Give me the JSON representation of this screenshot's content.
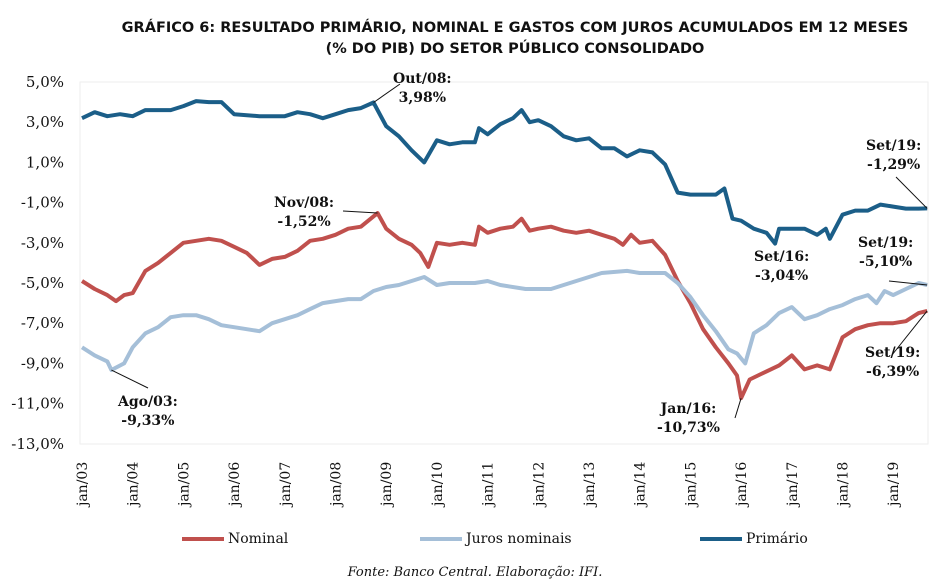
{
  "chart_data": {
    "type": "line",
    "title": "GRÁFICO 6: RESULTADO PRIMÁRIO, NOMINAL E GASTOS COM JUROS ACUMULADOS EM 12 MESES",
    "subtitle": "(% DO PIB) DO SETOR PÚBLICO CONSOLIDADO",
    "xlabel": "",
    "ylabel": "",
    "ylim": [
      -13,
      5
    ],
    "yticks": [
      "5,0%",
      "3,0%",
      "1,0%",
      "-1,0%",
      "-3,0%",
      "-5,0%",
      "-7,0%",
      "-9,0%",
      "-11,0%",
      "-13,0%"
    ],
    "ytick_values": [
      5,
      3,
      1,
      -1,
      -3,
      -5,
      -7,
      -9,
      -11,
      -13
    ],
    "xlim": [
      2003.0,
      2019.67
    ],
    "xticks": [
      "jan/03",
      "jan/04",
      "jan/05",
      "jan/06",
      "jan/07",
      "jan/08",
      "jan/09",
      "jan/10",
      "jan/11",
      "jan/12",
      "jan/13",
      "jan/14",
      "jan/15",
      "jan/16",
      "jan/17",
      "jan/18",
      "jan/19"
    ],
    "xtick_values": [
      2003,
      2004,
      2005,
      2006,
      2007,
      2008,
      2009,
      2010,
      2011,
      2012,
      2013,
      2014,
      2015,
      2016,
      2017,
      2018,
      2019
    ],
    "grid": false,
    "legend_position": "bottom",
    "series": [
      {
        "name": "Nominal",
        "color": "#c0504d",
        "points": [
          [
            2003.0,
            -4.9
          ],
          [
            2003.25,
            -5.3
          ],
          [
            2003.5,
            -5.6
          ],
          [
            2003.67,
            -5.9
          ],
          [
            2003.83,
            -5.6
          ],
          [
            2004.0,
            -5.5
          ],
          [
            2004.25,
            -4.4
          ],
          [
            2004.5,
            -4.0
          ],
          [
            2004.75,
            -3.5
          ],
          [
            2005.0,
            -3.0
          ],
          [
            2005.25,
            -2.9
          ],
          [
            2005.5,
            -2.8
          ],
          [
            2005.75,
            -2.9
          ],
          [
            2006.0,
            -3.2
          ],
          [
            2006.25,
            -3.5
          ],
          [
            2006.5,
            -4.1
          ],
          [
            2006.75,
            -3.8
          ],
          [
            2007.0,
            -3.7
          ],
          [
            2007.25,
            -3.4
          ],
          [
            2007.5,
            -2.9
          ],
          [
            2007.75,
            -2.8
          ],
          [
            2008.0,
            -2.6
          ],
          [
            2008.25,
            -2.3
          ],
          [
            2008.5,
            -2.2
          ],
          [
            2008.83,
            -1.52
          ],
          [
            2009.0,
            -2.3
          ],
          [
            2009.25,
            -2.8
          ],
          [
            2009.5,
            -3.1
          ],
          [
            2009.67,
            -3.5
          ],
          [
            2009.83,
            -4.2
          ],
          [
            2010.0,
            -3.0
          ],
          [
            2010.25,
            -3.1
          ],
          [
            2010.5,
            -3.0
          ],
          [
            2010.75,
            -3.1
          ],
          [
            2010.83,
            -2.2
          ],
          [
            2011.0,
            -2.5
          ],
          [
            2011.25,
            -2.3
          ],
          [
            2011.5,
            -2.2
          ],
          [
            2011.67,
            -1.8
          ],
          [
            2011.83,
            -2.4
          ],
          [
            2012.0,
            -2.3
          ],
          [
            2012.25,
            -2.2
          ],
          [
            2012.5,
            -2.4
          ],
          [
            2012.75,
            -2.5
          ],
          [
            2013.0,
            -2.4
          ],
          [
            2013.25,
            -2.6
          ],
          [
            2013.5,
            -2.8
          ],
          [
            2013.67,
            -3.1
          ],
          [
            2013.83,
            -2.6
          ],
          [
            2014.0,
            -3.0
          ],
          [
            2014.25,
            -2.9
          ],
          [
            2014.5,
            -3.6
          ],
          [
            2014.75,
            -4.9
          ],
          [
            2015.0,
            -6.0
          ],
          [
            2015.25,
            -7.3
          ],
          [
            2015.5,
            -8.2
          ],
          [
            2015.75,
            -9.0
          ],
          [
            2015.92,
            -9.6
          ],
          [
            2016.0,
            -10.73
          ],
          [
            2016.17,
            -9.8
          ],
          [
            2016.5,
            -9.4
          ],
          [
            2016.75,
            -9.1
          ],
          [
            2017.0,
            -8.6
          ],
          [
            2017.25,
            -9.3
          ],
          [
            2017.5,
            -9.1
          ],
          [
            2017.75,
            -9.3
          ],
          [
            2018.0,
            -7.7
          ],
          [
            2018.25,
            -7.3
          ],
          [
            2018.5,
            -7.1
          ],
          [
            2018.75,
            -7.0
          ],
          [
            2019.0,
            -7.0
          ],
          [
            2019.25,
            -6.9
          ],
          [
            2019.5,
            -6.5
          ],
          [
            2019.67,
            -6.39
          ]
        ]
      },
      {
        "name": "Juros nominais",
        "color": "#a5bfd8",
        "points": [
          [
            2003.0,
            -8.2
          ],
          [
            2003.25,
            -8.6
          ],
          [
            2003.5,
            -8.9
          ],
          [
            2003.58,
            -9.33
          ],
          [
            2003.83,
            -9.0
          ],
          [
            2004.0,
            -8.2
          ],
          [
            2004.25,
            -7.5
          ],
          [
            2004.5,
            -7.2
          ],
          [
            2004.75,
            -6.7
          ],
          [
            2005.0,
            -6.6
          ],
          [
            2005.25,
            -6.6
          ],
          [
            2005.5,
            -6.8
          ],
          [
            2005.75,
            -7.1
          ],
          [
            2006.0,
            -7.2
          ],
          [
            2006.25,
            -7.3
          ],
          [
            2006.5,
            -7.4
          ],
          [
            2006.75,
            -7.0
          ],
          [
            2007.0,
            -6.8
          ],
          [
            2007.25,
            -6.6
          ],
          [
            2007.5,
            -6.3
          ],
          [
            2007.75,
            -6.0
          ],
          [
            2008.0,
            -5.9
          ],
          [
            2008.25,
            -5.8
          ],
          [
            2008.5,
            -5.8
          ],
          [
            2008.75,
            -5.4
          ],
          [
            2009.0,
            -5.2
          ],
          [
            2009.25,
            -5.1
          ],
          [
            2009.5,
            -4.9
          ],
          [
            2009.75,
            -4.7
          ],
          [
            2010.0,
            -5.1
          ],
          [
            2010.25,
            -5.0
          ],
          [
            2010.75,
            -5.0
          ],
          [
            2011.0,
            -4.9
          ],
          [
            2011.25,
            -5.1
          ],
          [
            2011.75,
            -5.3
          ],
          [
            2012.25,
            -5.3
          ],
          [
            2012.75,
            -4.9
          ],
          [
            2013.25,
            -4.5
          ],
          [
            2013.75,
            -4.4
          ],
          [
            2014.0,
            -4.5
          ],
          [
            2014.5,
            -4.5
          ],
          [
            2014.75,
            -5.0
          ],
          [
            2015.0,
            -5.7
          ],
          [
            2015.25,
            -6.6
          ],
          [
            2015.5,
            -7.4
          ],
          [
            2015.75,
            -8.3
          ],
          [
            2015.92,
            -8.5
          ],
          [
            2016.08,
            -9.0
          ],
          [
            2016.25,
            -7.5
          ],
          [
            2016.5,
            -7.1
          ],
          [
            2016.75,
            -6.5
          ],
          [
            2017.0,
            -6.2
          ],
          [
            2017.25,
            -6.8
          ],
          [
            2017.5,
            -6.6
          ],
          [
            2017.75,
            -6.3
          ],
          [
            2018.0,
            -6.1
          ],
          [
            2018.25,
            -5.8
          ],
          [
            2018.5,
            -5.6
          ],
          [
            2018.67,
            -6.0
          ],
          [
            2018.83,
            -5.4
          ],
          [
            2019.0,
            -5.6
          ],
          [
            2019.25,
            -5.3
          ],
          [
            2019.5,
            -5.0
          ],
          [
            2019.67,
            -5.1
          ]
        ]
      },
      {
        "name": "Primário",
        "color": "#1b5e88",
        "points": [
          [
            2003.0,
            3.2
          ],
          [
            2003.25,
            3.5
          ],
          [
            2003.5,
            3.3
          ],
          [
            2003.75,
            3.4
          ],
          [
            2004.0,
            3.3
          ],
          [
            2004.25,
            3.6
          ],
          [
            2004.5,
            3.6
          ],
          [
            2004.75,
            3.6
          ],
          [
            2005.0,
            3.8
          ],
          [
            2005.25,
            4.05
          ],
          [
            2005.5,
            4.0
          ],
          [
            2005.75,
            4.0
          ],
          [
            2006.0,
            3.4
          ],
          [
            2006.5,
            3.3
          ],
          [
            2007.0,
            3.3
          ],
          [
            2007.25,
            3.5
          ],
          [
            2007.5,
            3.4
          ],
          [
            2007.75,
            3.2
          ],
          [
            2008.0,
            3.4
          ],
          [
            2008.25,
            3.6
          ],
          [
            2008.5,
            3.7
          ],
          [
            2008.75,
            3.98
          ],
          [
            2009.0,
            2.8
          ],
          [
            2009.25,
            2.3
          ],
          [
            2009.5,
            1.6
          ],
          [
            2009.75,
            1.0
          ],
          [
            2010.0,
            2.1
          ],
          [
            2010.25,
            1.9
          ],
          [
            2010.5,
            2.0
          ],
          [
            2010.75,
            2.0
          ],
          [
            2010.83,
            2.7
          ],
          [
            2011.0,
            2.4
          ],
          [
            2011.25,
            2.9
          ],
          [
            2011.5,
            3.2
          ],
          [
            2011.67,
            3.6
          ],
          [
            2011.83,
            3.0
          ],
          [
            2012.0,
            3.1
          ],
          [
            2012.25,
            2.8
          ],
          [
            2012.5,
            2.3
          ],
          [
            2012.75,
            2.1
          ],
          [
            2013.0,
            2.2
          ],
          [
            2013.25,
            1.7
          ],
          [
            2013.5,
            1.7
          ],
          [
            2013.75,
            1.3
          ],
          [
            2014.0,
            1.6
          ],
          [
            2014.25,
            1.5
          ],
          [
            2014.5,
            0.9
          ],
          [
            2014.75,
            -0.5
          ],
          [
            2015.0,
            -0.6
          ],
          [
            2015.25,
            -0.6
          ],
          [
            2015.5,
            -0.6
          ],
          [
            2015.67,
            -0.3
          ],
          [
            2015.83,
            -1.8
          ],
          [
            2016.0,
            -1.9
          ],
          [
            2016.25,
            -2.3
          ],
          [
            2016.5,
            -2.5
          ],
          [
            2016.67,
            -3.04
          ],
          [
            2016.75,
            -2.3
          ],
          [
            2017.0,
            -2.3
          ],
          [
            2017.25,
            -2.3
          ],
          [
            2017.5,
            -2.6
          ],
          [
            2017.67,
            -2.3
          ],
          [
            2017.75,
            -2.8
          ],
          [
            2018.0,
            -1.6
          ],
          [
            2018.25,
            -1.4
          ],
          [
            2018.5,
            -1.4
          ],
          [
            2018.75,
            -1.1
          ],
          [
            2019.0,
            -1.2
          ],
          [
            2019.25,
            -1.3
          ],
          [
            2019.5,
            -1.3
          ],
          [
            2019.67,
            -1.29
          ]
        ]
      }
    ],
    "annotations": [
      {
        "label": "Out/08:",
        "value": "3,98%",
        "x": 2008.75,
        "y": 3.98
      },
      {
        "label": "Nov/08:",
        "value": "-1,52%",
        "x": 2008.83,
        "y": -1.52
      },
      {
        "label": "Ago/03:",
        "value": "-9,33%",
        "x": 2003.58,
        "y": -9.33
      },
      {
        "label": "Jan/16:",
        "value": "-10,73%",
        "x": 2016.0,
        "y": -10.73
      },
      {
        "label": "Set/16:",
        "value": "-3,04%",
        "x": 2016.67,
        "y": -3.04
      },
      {
        "label": "Set/19:",
        "value": "-1,29%",
        "x": 2019.67,
        "y": -1.29
      },
      {
        "label": "Set/19:",
        "value": "-5,10%",
        "x": 2019.67,
        "y": -5.1
      },
      {
        "label": "Set/19:",
        "value": "-6,39%",
        "x": 2019.67,
        "y": -6.39
      }
    ]
  },
  "source": "Fonte: Banco Central. Elaboração: IFI."
}
